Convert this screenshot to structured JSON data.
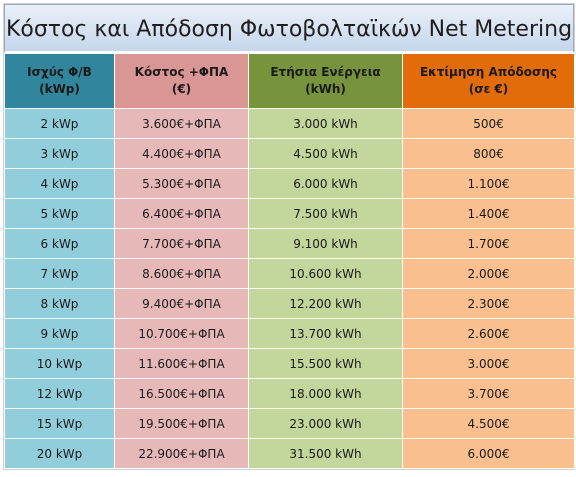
{
  "title": "Κόστος και Απόδοση Φωτοβολταϊκών Net Metering",
  "headers": [
    {
      "line1": "Ισχύς Φ/Β",
      "line2": "(kWp)"
    },
    {
      "line1": "Κόστος +ΦΠΑ",
      "line2": "(€)"
    },
    {
      "line1": "Ετήσια Ενέργεια",
      "line2": "(kWh)"
    },
    {
      "line1": "Εκτίμηση Απόδοσης",
      "line2": "(σε €)"
    }
  ],
  "rows": [
    [
      "2 kWp",
      "3.600€+ΦΠΑ",
      "3.000 kWh",
      "500€"
    ],
    [
      "3 kWp",
      "4.400€+ΦΠΑ",
      "4.500 kWh",
      "800€"
    ],
    [
      "4 kWp",
      "5.300€+ΦΠΑ",
      "6.000 kWh",
      "1.100€"
    ],
    [
      "5 kWp",
      "6.400€+ΦΠΑ",
      "7.500 kWh",
      "1.400€"
    ],
    [
      "6 kWp",
      "7.700€+ΦΠΑ",
      "9.100 kWh",
      "1.700€"
    ],
    [
      "7 kWp",
      "8.600€+ΦΠΑ",
      "10.600 kWh",
      "2.000€"
    ],
    [
      "8 kWp",
      "9.400€+ΦΠΑ",
      "12.200 kWh",
      "2.300€"
    ],
    [
      "9 kWp",
      "10.700€+ΦΠΑ",
      "13.700 kWh",
      "2.600€"
    ],
    [
      "10 kWp",
      "11.600€+ΦΠΑ",
      "15.500 kWh",
      "3.000€"
    ],
    [
      "12 kWp",
      "16.500€+ΦΠΑ",
      "18.000 kWh",
      "3.700€"
    ],
    [
      "15 kWp",
      "19.500€+ΦΠΑ",
      "23.000 kWh",
      "4.500€"
    ],
    [
      "20 kWp",
      "22.900€+ΦΠΑ",
      "31.500 kWh",
      "6.000€"
    ]
  ],
  "colors": {
    "header": [
      "#31859c",
      "#da9694",
      "#77933c",
      "#e36c0a"
    ],
    "cells": [
      "#92cddc",
      "#e6b9b8",
      "#c3d69b",
      "#fabf8f"
    ]
  }
}
